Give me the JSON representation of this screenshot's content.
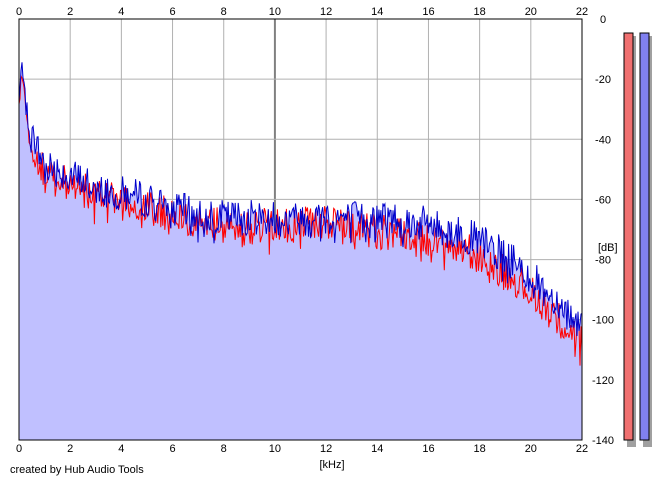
{
  "chart_data": {
    "type": "area",
    "title": "",
    "xlabel": "[kHz]",
    "ylabel": "[dB]",
    "xlim": [
      0,
      22
    ],
    "ylim": [
      -140,
      0
    ],
    "x_ticks": [
      0,
      2,
      4,
      6,
      8,
      10,
      12,
      14,
      16,
      18,
      20,
      22
    ],
    "y_ticks": [
      0,
      -20,
      -40,
      -60,
      -80,
      -100,
      -120,
      -140
    ],
    "x_tick_labels": [
      "0",
      "2",
      "4",
      "6",
      "8",
      "10",
      "12",
      "14",
      "16",
      "18",
      "20",
      "22"
    ],
    "y_tick_labels": [
      "0",
      "-20",
      "-40",
      "-60",
      "-80",
      "-100",
      "-120",
      "-140"
    ],
    "grid": true,
    "legend": "none",
    "series": [
      {
        "color": "#0000cc",
        "fill": "#c0c0ff",
        "x": [
          0,
          0.1,
          0.2,
          0.3,
          0.4,
          0.6,
          0.8,
          1,
          1.5,
          2,
          2.5,
          3,
          3.5,
          4,
          4.5,
          5,
          5.5,
          6,
          6.5,
          7,
          7.5,
          8,
          8.5,
          9,
          9.5,
          10,
          10.5,
          11,
          11.5,
          12,
          12.5,
          13,
          13.5,
          14,
          14.5,
          15,
          15.5,
          16,
          16.5,
          17,
          17.5,
          18,
          18.5,
          19,
          19.5,
          20,
          20.5,
          21,
          21.5,
          22
        ],
        "values": [
          -28,
          -15,
          -20,
          -28,
          -38,
          -40,
          -45,
          -48,
          -50,
          -52,
          -54,
          -56,
          -57,
          -58,
          -59,
          -60,
          -62,
          -64,
          -64,
          -65,
          -65,
          -66,
          -66,
          -66,
          -66,
          -66,
          -67,
          -66,
          -66,
          -66,
          -66,
          -66,
          -67,
          -67,
          -66,
          -67,
          -68,
          -68,
          -70,
          -71,
          -72,
          -74,
          -76,
          -79,
          -82,
          -86,
          -90,
          -94,
          -98,
          -101
        ]
      },
      {
        "color": "#ff0000",
        "x": [
          0,
          0.1,
          0.2,
          0.3,
          0.4,
          0.6,
          0.8,
          1,
          1.5,
          2,
          2.5,
          3,
          3.5,
          4,
          4.5,
          5,
          5.5,
          6,
          6.5,
          7,
          7.5,
          8,
          8.5,
          9,
          9.5,
          10,
          10.5,
          11,
          11.5,
          12,
          12.5,
          13,
          13.5,
          14,
          14.5,
          15,
          15.5,
          16,
          16.5,
          17,
          17.5,
          18,
          18.5,
          19,
          19.5,
          20,
          20.5,
          21,
          21.5,
          22
        ],
        "values": [
          -30,
          -18,
          -22,
          -30,
          -40,
          -43,
          -48,
          -52,
          -53,
          -55,
          -57,
          -58,
          -59,
          -61,
          -62,
          -63,
          -64,
          -66,
          -67,
          -68,
          -68,
          -69,
          -69,
          -69,
          -69,
          -68,
          -69,
          -68,
          -68,
          -68,
          -69,
          -69,
          -70,
          -71,
          -71,
          -72,
          -73,
          -74,
          -75,
          -76,
          -77,
          -79,
          -81,
          -84,
          -87,
          -91,
          -95,
          -99,
          -103,
          -107
        ]
      }
    ]
  },
  "footer": {
    "credit": "created by Hub Audio Tools"
  },
  "meters": {
    "left_color": "#f07070",
    "right_color": "#8080f0"
  }
}
